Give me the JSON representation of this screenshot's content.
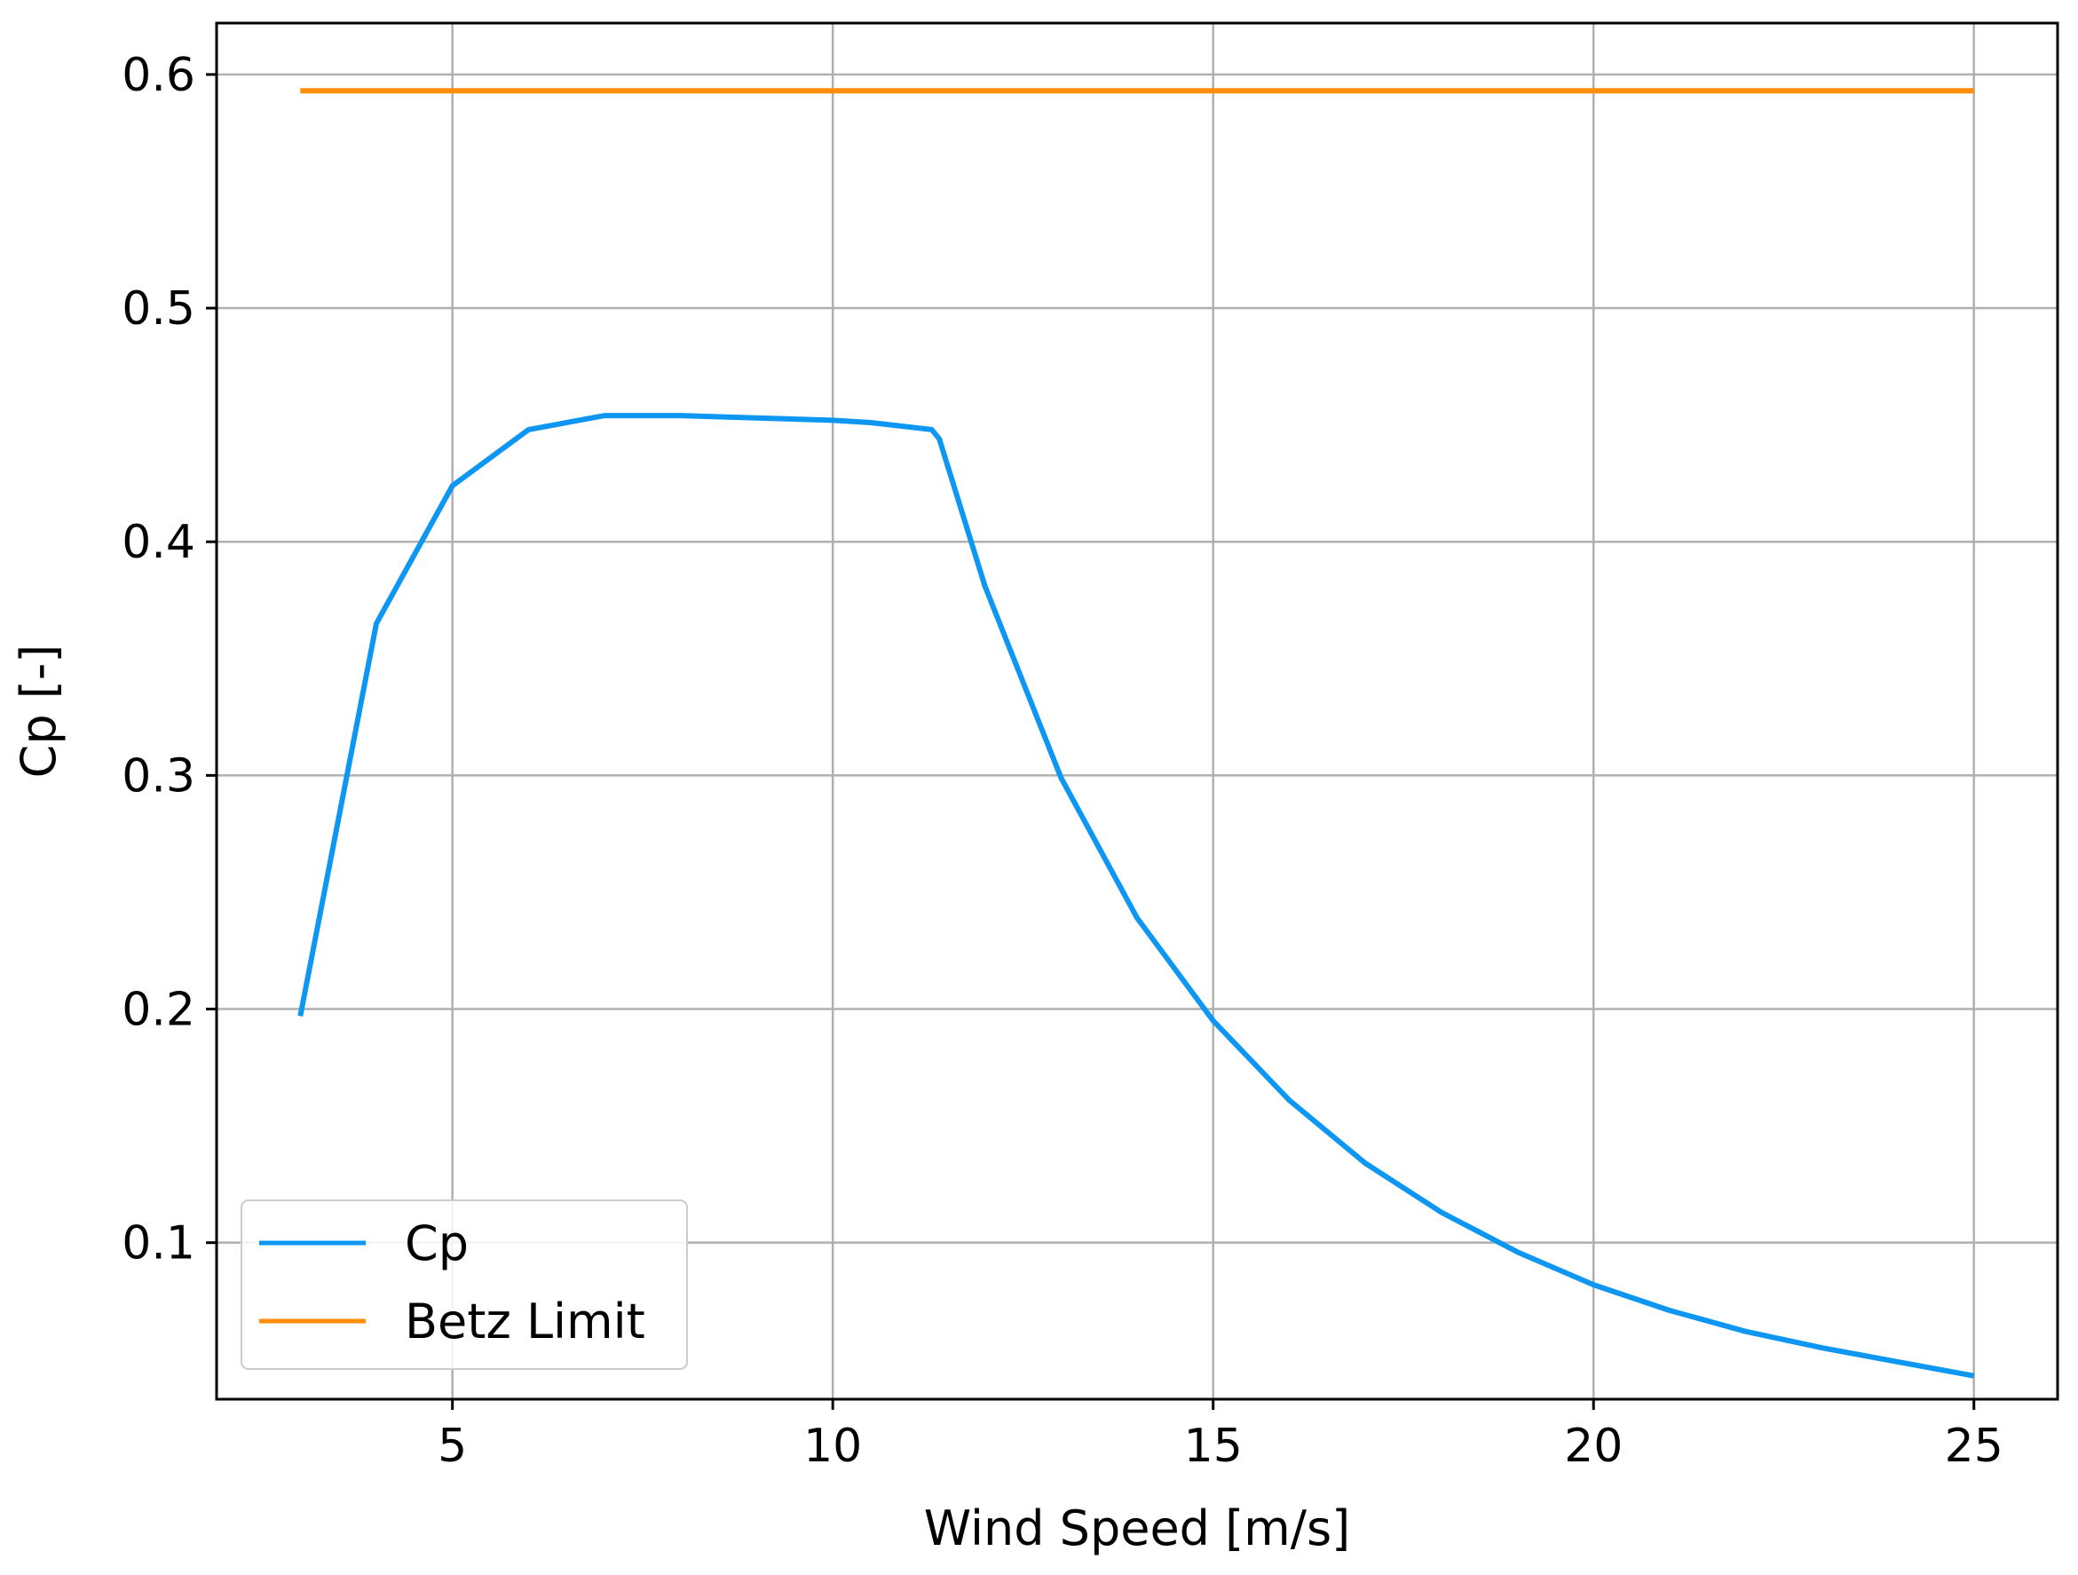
{
  "chart_data": {
    "type": "line",
    "title": "",
    "xlabel": "Wind Speed [m/s]",
    "ylabel": "Cp [-]",
    "xlim": [
      1.9,
      26.1
    ],
    "ylim": [
      0.033,
      0.622
    ],
    "xticks": [
      5,
      10,
      15,
      20,
      25
    ],
    "xtick_labels": [
      "5",
      "10",
      "15",
      "20",
      "25"
    ],
    "yticks": [
      0.1,
      0.2,
      0.3,
      0.4,
      0.5,
      0.6
    ],
    "ytick_labels": [
      "0.1",
      "0.2",
      "0.3",
      "0.4",
      "0.5",
      "0.6"
    ],
    "grid": true,
    "legend_position": "lower-left",
    "series": [
      {
        "name": "Cp",
        "color": "#0d96f2",
        "x": [
          3,
          4,
          5,
          6,
          7,
          8,
          9,
          10,
          10.5,
          11.3,
          11.4,
          12,
          13,
          14,
          15,
          16,
          17,
          18,
          19,
          20,
          21,
          22,
          23,
          24,
          25
        ],
        "y": [
          0.197,
          0.365,
          0.424,
          0.448,
          0.454,
          0.454,
          0.453,
          0.452,
          0.451,
          0.448,
          0.444,
          0.381,
          0.299,
          0.239,
          0.195,
          0.161,
          0.134,
          0.113,
          0.096,
          0.082,
          0.071,
          0.062,
          0.055,
          0.049,
          0.043
        ]
      },
      {
        "name": "Betz Limit",
        "color": "#ff8c0a",
        "x": [
          3,
          25
        ],
        "y": [
          0.593,
          0.593
        ]
      }
    ]
  }
}
